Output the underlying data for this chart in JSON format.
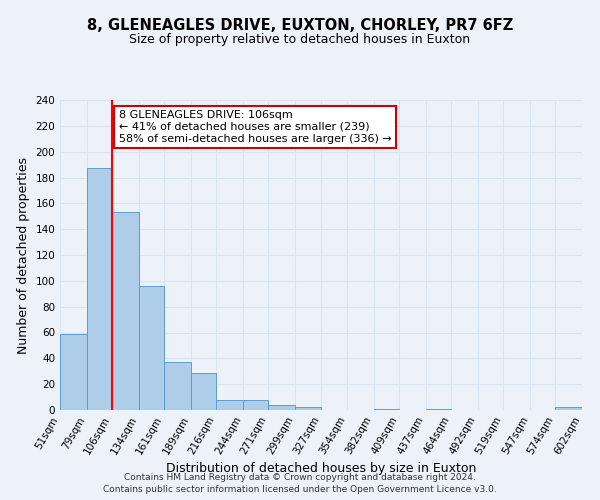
{
  "title": "8, GLENEAGLES DRIVE, EUXTON, CHORLEY, PR7 6FZ",
  "subtitle": "Size of property relative to detached houses in Euxton",
  "xlabel": "Distribution of detached houses by size in Euxton",
  "ylabel": "Number of detached properties",
  "bar_edges": [
    51,
    79,
    106,
    134,
    161,
    189,
    216,
    244,
    271,
    299,
    327,
    354,
    382,
    409,
    437,
    464,
    492,
    519,
    547,
    574,
    602
  ],
  "bar_heights": [
    59,
    187,
    153,
    96,
    37,
    29,
    8,
    8,
    4,
    2,
    0,
    0,
    1,
    0,
    1,
    0,
    0,
    0,
    0,
    2
  ],
  "bar_color": "#aecde8",
  "bar_edge_color": "#5a9fd4",
  "redline_x": 106,
  "ylim": [
    0,
    240
  ],
  "yticks": [
    0,
    20,
    40,
    60,
    80,
    100,
    120,
    140,
    160,
    180,
    200,
    220,
    240
  ],
  "annotation_title": "8 GLENEAGLES DRIVE: 106sqm",
  "annotation_line1": "← 41% of detached houses are smaller (239)",
  "annotation_line2": "58% of semi-detached houses are larger (336) →",
  "annotation_box_color": "#ffffff",
  "annotation_box_edge": "#cc0000",
  "footer_line1": "Contains HM Land Registry data © Crown copyright and database right 2024.",
  "footer_line2": "Contains public sector information licensed under the Open Government Licence v3.0.",
  "background_color": "#edf2f9",
  "grid_color": "#d8e4f0",
  "title_fontsize": 10.5,
  "subtitle_fontsize": 9,
  "axis_label_fontsize": 9,
  "tick_label_fontsize": 7.5,
  "footer_fontsize": 6.5
}
